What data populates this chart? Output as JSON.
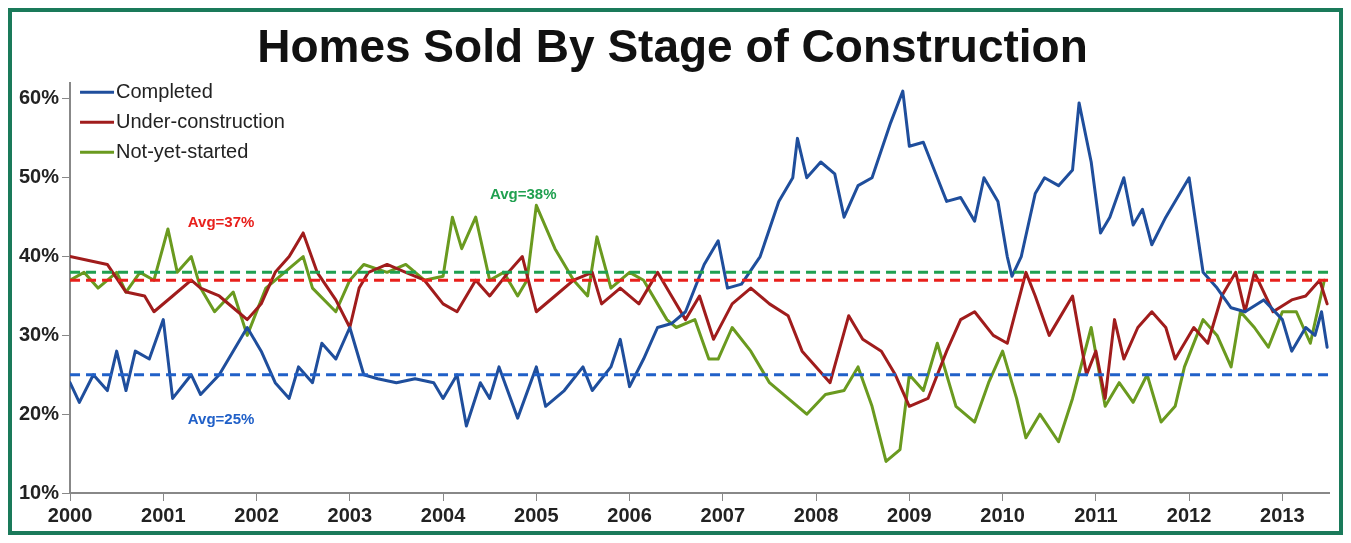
{
  "chart_data": {
    "type": "line",
    "title": "Homes Sold By Stage of Construction",
    "xlim": [
      2000,
      2013.5
    ],
    "xticks": [
      2000,
      2001,
      2002,
      2003,
      2004,
      2005,
      2006,
      2007,
      2008,
      2009,
      2010,
      2011,
      2012,
      2013
    ],
    "ylim": [
      10,
      62
    ],
    "yticks": [
      {
        "value": 10,
        "label": "10%"
      },
      {
        "value": 20,
        "label": "20%"
      },
      {
        "value": 30,
        "label": "30%"
      },
      {
        "value": 40,
        "label": "40%"
      },
      {
        "value": 50,
        "label": "50%"
      },
      {
        "value": 60,
        "label": "60%"
      }
    ],
    "grid": false,
    "legend": "top left",
    "marker": "none",
    "line_style": "solid",
    "series": [
      {
        "name": "Completed",
        "color": "#1f4e9c",
        "x": [
          2000.0,
          2000.1,
          2000.25,
          2000.4,
          2000.5,
          2000.6,
          2000.7,
          2000.85,
          2001.0,
          2001.1,
          2001.3,
          2001.4,
          2001.6,
          2001.8,
          2001.9,
          2002.05,
          2002.2,
          2002.35,
          2002.45,
          2002.6,
          2002.7,
          2002.85,
          2003.0,
          2003.15,
          2003.3,
          2003.5,
          2003.7,
          2003.9,
          2004.0,
          2004.15,
          2004.25,
          2004.4,
          2004.5,
          2004.6,
          2004.8,
          2005.0,
          2005.1,
          2005.3,
          2005.5,
          2005.6,
          2005.8,
          2005.9,
          2006.0,
          2006.15,
          2006.3,
          2006.45,
          2006.6,
          2006.8,
          2006.95,
          2007.05,
          2007.2,
          2007.4,
          2007.6,
          2007.75,
          2007.8,
          2007.9,
          2008.05,
          2008.2,
          2008.3,
          2008.45,
          2008.6,
          2008.8,
          2008.93,
          2009.0,
          2009.15,
          2009.3,
          2009.4,
          2009.55,
          2009.7,
          2009.8,
          2009.95,
          2010.05,
          2010.1,
          2010.2,
          2010.35,
          2010.45,
          2010.6,
          2010.75,
          2010.82,
          2010.95,
          2011.05,
          2011.15,
          2011.3,
          2011.4,
          2011.5,
          2011.6,
          2011.75,
          2011.9,
          2012.0,
          2012.15,
          2012.3,
          2012.45,
          2012.6,
          2012.8,
          2013.0,
          2013.1,
          2013.25,
          2013.35,
          2013.42,
          2013.48
        ],
        "values": [
          24,
          21.5,
          25,
          23,
          28,
          23,
          28,
          27,
          32,
          22,
          25,
          22.5,
          25,
          29,
          31,
          28,
          24,
          22,
          26,
          24,
          29,
          27,
          31,
          25,
          24.5,
          24,
          24.5,
          24,
          22,
          25,
          18.5,
          24,
          22,
          26,
          19.5,
          26,
          21,
          23,
          26,
          23,
          26,
          29.5,
          23.5,
          27,
          31,
          31.5,
          33,
          39,
          42,
          36,
          36.5,
          40,
          47,
          50,
          55,
          50,
          52,
          50.5,
          45,
          49,
          50,
          57,
          61,
          54,
          54.5,
          50,
          47,
          47.5,
          44.5,
          50,
          47,
          40,
          37.5,
          40,
          48,
          50,
          49,
          51,
          59.5,
          52,
          43,
          45,
          50,
          44,
          46,
          41.5,
          45,
          48,
          50,
          38,
          36,
          33.5,
          33,
          34.5,
          32,
          28,
          31,
          30,
          33,
          28.5
        ]
      },
      {
        "name": "Under-construction",
        "color": "#a01c1c",
        "x": [
          2000.0,
          2000.2,
          2000.4,
          2000.6,
          2000.8,
          2000.9,
          2001.1,
          2001.3,
          2001.4,
          2001.6,
          2001.8,
          2001.9,
          2002.05,
          2002.2,
          2002.35,
          2002.5,
          2002.65,
          2002.85,
          2003.0,
          2003.1,
          2003.2,
          2003.4,
          2003.6,
          2003.8,
          2004.0,
          2004.15,
          2004.35,
          2004.5,
          2004.7,
          2004.85,
          2005.0,
          2005.2,
          2005.4,
          2005.6,
          2005.7,
          2005.9,
          2006.1,
          2006.3,
          2006.45,
          2006.6,
          2006.75,
          2006.9,
          2007.1,
          2007.3,
          2007.5,
          2007.7,
          2007.85,
          2008.0,
          2008.15,
          2008.35,
          2008.5,
          2008.7,
          2008.85,
          2009.0,
          2009.2,
          2009.4,
          2009.55,
          2009.7,
          2009.9,
          2010.05,
          2010.25,
          2010.35,
          2010.5,
          2010.6,
          2010.75,
          2010.9,
          2011.0,
          2011.1,
          2011.2,
          2011.3,
          2011.45,
          2011.6,
          2011.75,
          2011.85,
          2012.05,
          2012.2,
          2012.35,
          2012.5,
          2012.6,
          2012.7,
          2012.9,
          2013.1,
          2013.25,
          2013.4,
          2013.48
        ],
        "values": [
          40,
          39.5,
          39,
          35.5,
          35,
          33,
          35,
          37,
          36,
          35,
          33,
          32,
          34,
          38,
          40,
          43,
          38,
          34.5,
          31,
          36,
          38,
          39,
          38,
          37,
          34,
          33,
          37,
          35,
          38,
          40,
          33,
          35,
          37,
          38,
          34,
          36,
          34,
          38,
          35,
          32,
          35,
          29.5,
          34,
          36,
          34,
          32.5,
          28,
          26,
          24,
          32.5,
          29.5,
          28,
          25,
          21,
          22,
          28,
          32,
          33,
          30,
          29,
          38,
          35,
          30,
          32,
          35,
          25,
          28,
          22,
          32,
          27,
          31,
          33,
          31,
          27,
          31,
          29,
          35,
          38,
          33,
          38,
          33,
          34.5,
          35,
          37,
          34
        ]
      },
      {
        "name": "Not-yet-started",
        "color": "#6a9a1f",
        "x": [
          2000.0,
          2000.15,
          2000.3,
          2000.5,
          2000.6,
          2000.75,
          2000.9,
          2001.05,
          2001.15,
          2001.3,
          2001.4,
          2001.55,
          2001.75,
          2001.9,
          2002.1,
          2002.3,
          2002.5,
          2002.6,
          2002.85,
          2003.0,
          2003.15,
          2003.4,
          2003.6,
          2003.8,
          2004.0,
          2004.1,
          2004.2,
          2004.35,
          2004.5,
          2004.65,
          2004.8,
          2004.9,
          2005.0,
          2005.2,
          2005.4,
          2005.55,
          2005.65,
          2005.8,
          2006.0,
          2006.15,
          2006.4,
          2006.5,
          2006.7,
          2006.85,
          2006.95,
          2007.1,
          2007.3,
          2007.5,
          2007.7,
          2007.9,
          2008.1,
          2008.3,
          2008.45,
          2008.6,
          2008.75,
          2008.9,
          2009.0,
          2009.15,
          2009.3,
          2009.5,
          2009.7,
          2009.85,
          2010.0,
          2010.15,
          2010.25,
          2010.4,
          2010.6,
          2010.75,
          2010.95,
          2011.1,
          2011.25,
          2011.4,
          2011.55,
          2011.7,
          2011.85,
          2011.95,
          2012.15,
          2012.3,
          2012.45,
          2012.55,
          2012.7,
          2012.85,
          2013.0,
          2013.15,
          2013.3,
          2013.45
        ],
        "values": [
          37,
          38,
          36,
          38,
          35.5,
          38,
          37,
          43.5,
          38,
          40,
          36,
          33,
          35.5,
          30,
          36,
          38,
          40,
          36,
          33,
          37,
          39,
          38,
          39,
          37,
          37.5,
          45,
          41,
          45,
          37,
          38,
          35,
          37,
          46.5,
          41,
          37,
          35,
          42.5,
          36,
          38,
          37,
          32,
          31,
          32,
          27,
          27,
          31,
          28,
          24,
          22,
          20,
          22.5,
          23,
          26,
          21,
          14,
          15.5,
          25,
          23,
          29,
          21,
          19,
          24,
          28,
          22,
          17,
          20,
          16.5,
          22,
          31,
          21,
          24,
          21.5,
          25,
          19,
          21,
          26,
          32,
          30,
          26,
          33,
          31,
          28.5,
          33,
          33,
          29,
          37
        ]
      }
    ],
    "ref_lines": [
      {
        "axis": "y",
        "value": 25,
        "label": "Avg=25%",
        "color": "#2060c8",
        "line_style": "dashed"
      },
      {
        "axis": "y",
        "value": 37,
        "label": "Avg=37%",
        "color": "#e8201c",
        "line_style": "dashed"
      },
      {
        "axis": "y",
        "value": 38,
        "label": "Avg=38%",
        "color": "#20a050",
        "line_style": "dashed"
      }
    ]
  }
}
